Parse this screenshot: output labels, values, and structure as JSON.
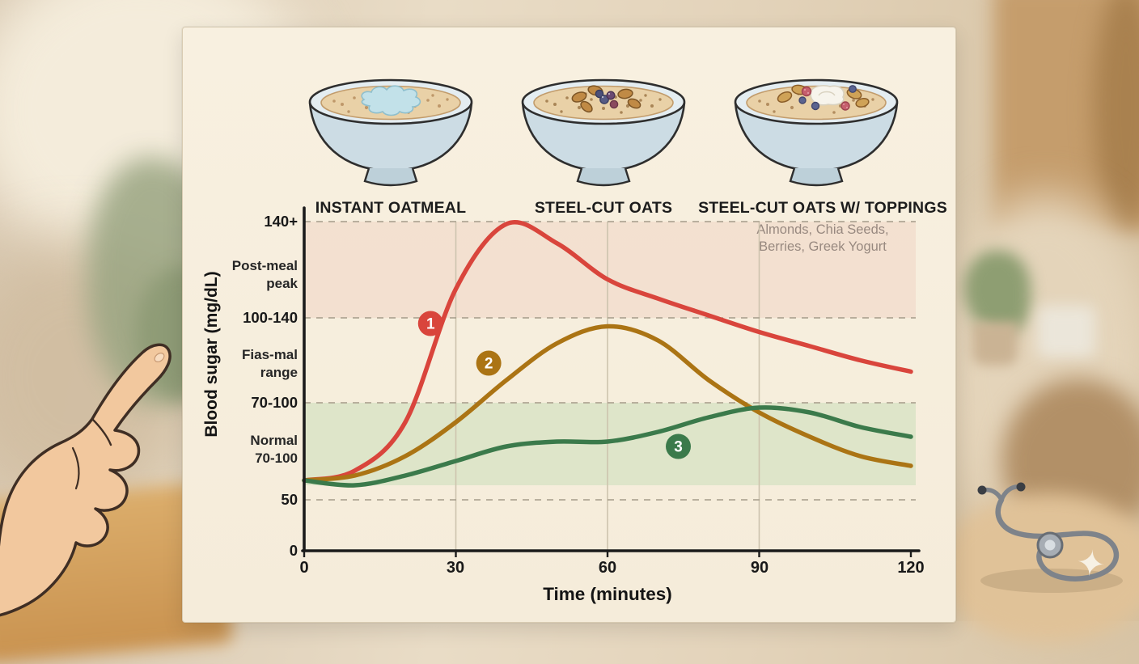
{
  "decor": {
    "sparkle_glyph": "✦"
  },
  "bowls": {
    "items": [
      {
        "label": "INSTANT OATMEAL",
        "subtitle": ""
      },
      {
        "label": "STEEL-CUT OATS",
        "subtitle": ""
      },
      {
        "label": "STEEL-CUT OATS W/ TOPPINGS",
        "subtitle": "Almonds, Chia Seeds,\nBerries, Greek Yogurt"
      }
    ]
  },
  "chart_data": {
    "type": "line",
    "xlabel": "Time (minutes)",
    "ylabel": "Blood sugar (mg/dL)",
    "x_ticks": [
      "0",
      "30",
      "60",
      "90",
      "120"
    ],
    "x_tick_values": [
      0,
      30,
      60,
      90,
      120
    ],
    "xlim": [
      0,
      120
    ],
    "y_scale_note": "illustrative non-linear axis with labeled levels 0, 50, 70-100, 100-140, 140+",
    "y_tick_labels": [
      {
        "text": "140+",
        "value": 140
      },
      {
        "text": "Post-meal\npeak",
        "zone": "post-meal peak"
      },
      {
        "text": "100-140",
        "value": 100
      },
      {
        "text": "Fias-mal\nrange",
        "zone": "post-meal range"
      },
      {
        "text": "70-100",
        "value": 70
      },
      {
        "text": "Normal\n70-100",
        "zone": "normal"
      },
      {
        "text": "50",
        "value": 50
      },
      {
        "text": "0",
        "value": 0
      }
    ],
    "h_gridlines": [
      50,
      70,
      100,
      140
    ],
    "v_gridlines": [
      30,
      60,
      90
    ],
    "bands": [
      {
        "name": "post-meal-peak-zone",
        "from": 100,
        "to": 140,
        "color": "#f0d5c4",
        "opacity": 0.55
      },
      {
        "name": "normal-zone",
        "from": 53,
        "to": 70,
        "color": "#cfe0bc",
        "opacity": 0.6
      }
    ],
    "x": [
      0,
      10,
      20,
      30,
      40,
      50,
      60,
      70,
      80,
      90,
      100,
      110,
      120
    ],
    "series": [
      {
        "name": "Instant Oatmeal",
        "color": "#d9453c",
        "values": [
          54,
          56,
          66,
          112,
          139,
          131,
          116,
          108,
          101,
          95,
          90,
          85,
          81
        ],
        "badge": {
          "label": "1",
          "t": 25,
          "value": 98
        }
      },
      {
        "name": "Steel-Cut Oats",
        "color": "#ab7414",
        "values": [
          54,
          55,
          59,
          66,
          78,
          91,
          97,
          92,
          78,
          68,
          63,
          59,
          57
        ],
        "badge": {
          "label": "2",
          "t": 36.5,
          "value": 84
        }
      },
      {
        "name": "Steel-Cut Oats w/ Toppings",
        "color": "#3b7a4b",
        "values": [
          54,
          53,
          55,
          58,
          61,
          62,
          62,
          64,
          67,
          69,
          68,
          65,
          63
        ],
        "badge": {
          "label": "3",
          "t": 74,
          "value": 61
        }
      }
    ]
  }
}
